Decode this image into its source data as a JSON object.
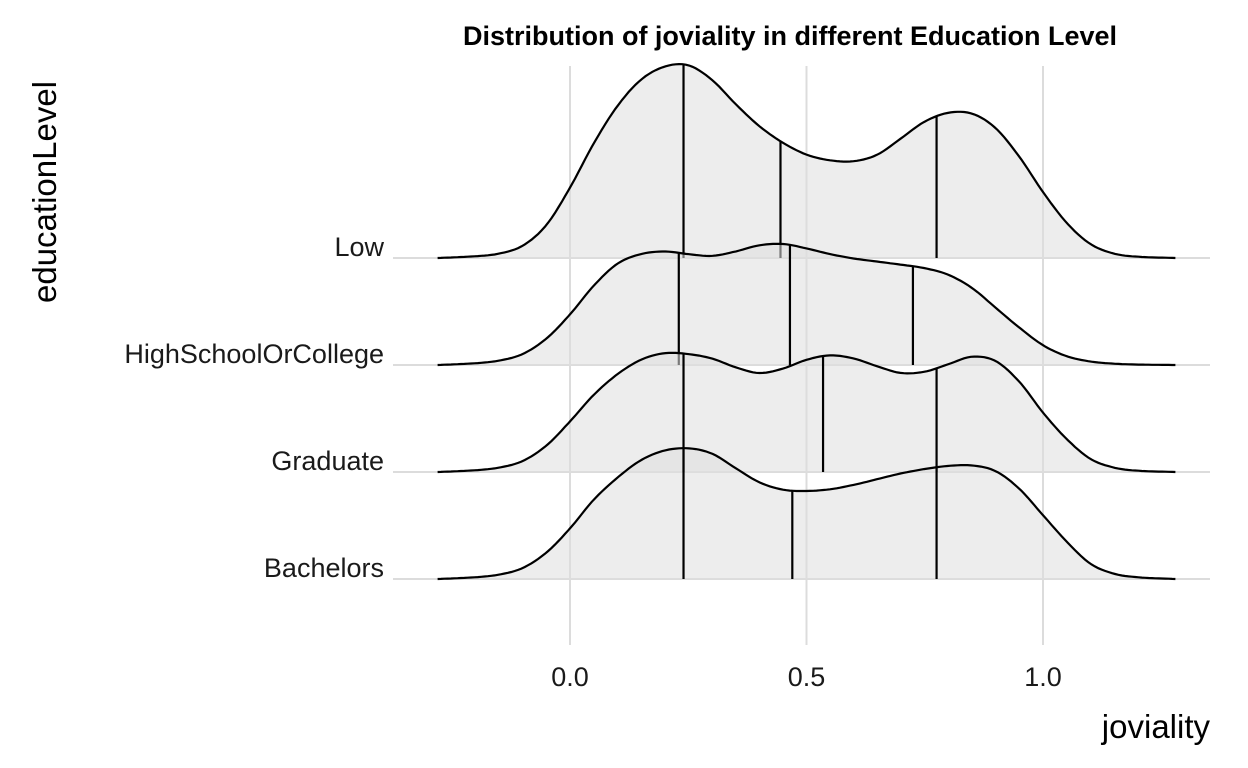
{
  "chart_data": {
    "type": "ridgeline",
    "title": "Distribution of joviality in different Education Level",
    "xlabel": "joviality",
    "ylabel": "educationLevel",
    "xlim": [
      -0.28,
      1.28
    ],
    "x_ticks": [
      0.0,
      0.5,
      1.0
    ],
    "x_tick_labels": [
      "0.0",
      "0.5",
      "1.0"
    ],
    "categories": [
      "Bachelors",
      "Graduate",
      "HighSchoolOrCollege",
      "Low"
    ],
    "grid": true,
    "legend": "none",
    "fill_color": "#dedede",
    "line_color": "#000000",
    "series": [
      {
        "name": "Bachelors",
        "x": [
          -0.28,
          -0.2,
          -0.15,
          -0.1,
          -0.05,
          0.0,
          0.05,
          0.1,
          0.15,
          0.2,
          0.25,
          0.3,
          0.35,
          0.4,
          0.45,
          0.5,
          0.55,
          0.6,
          0.65,
          0.7,
          0.75,
          0.8,
          0.85,
          0.9,
          0.95,
          1.0,
          1.05,
          1.1,
          1.15,
          1.2,
          1.28
        ],
        "density": [
          0.0,
          0.04,
          0.1,
          0.25,
          0.6,
          1.15,
          1.8,
          2.3,
          2.7,
          2.92,
          2.97,
          2.85,
          2.52,
          2.2,
          2.03,
          2.0,
          2.04,
          2.14,
          2.27,
          2.4,
          2.5,
          2.57,
          2.58,
          2.45,
          2.05,
          1.45,
          0.85,
          0.35,
          0.12,
          0.04,
          0.0
        ],
        "quantiles": [
          0.24,
          0.47,
          0.775
        ]
      },
      {
        "name": "Graduate",
        "x": [
          -0.28,
          -0.2,
          -0.15,
          -0.1,
          -0.05,
          0.0,
          0.05,
          0.1,
          0.15,
          0.2,
          0.25,
          0.3,
          0.35,
          0.4,
          0.45,
          0.5,
          0.55,
          0.6,
          0.65,
          0.7,
          0.75,
          0.8,
          0.85,
          0.9,
          0.95,
          1.0,
          1.05,
          1.1,
          1.15,
          1.2,
          1.28
        ],
        "density": [
          0.0,
          0.04,
          0.1,
          0.25,
          0.6,
          1.15,
          1.75,
          2.22,
          2.55,
          2.7,
          2.68,
          2.58,
          2.38,
          2.25,
          2.35,
          2.55,
          2.65,
          2.58,
          2.4,
          2.25,
          2.28,
          2.45,
          2.62,
          2.52,
          2.05,
          1.35,
          0.75,
          0.3,
          0.1,
          0.03,
          0.0
        ],
        "quantiles": [
          0.24,
          0.535,
          0.775
        ]
      },
      {
        "name": "HighSchoolOrCollege",
        "x": [
          -0.28,
          -0.2,
          -0.15,
          -0.1,
          -0.05,
          0.0,
          0.05,
          0.1,
          0.15,
          0.2,
          0.25,
          0.3,
          0.35,
          0.4,
          0.45,
          0.5,
          0.55,
          0.6,
          0.65,
          0.7,
          0.75,
          0.8,
          0.85,
          0.9,
          0.95,
          1.0,
          1.05,
          1.1,
          1.15,
          1.2,
          1.28
        ],
        "density": [
          0.0,
          0.04,
          0.1,
          0.25,
          0.6,
          1.15,
          1.8,
          2.3,
          2.52,
          2.58,
          2.52,
          2.48,
          2.58,
          2.72,
          2.75,
          2.65,
          2.52,
          2.42,
          2.35,
          2.28,
          2.2,
          2.05,
          1.75,
          1.3,
          0.85,
          0.45,
          0.2,
          0.08,
          0.03,
          0.01,
          0.0
        ],
        "quantiles": [
          0.23,
          0.465,
          0.725
        ]
      },
      {
        "name": "Low",
        "x": [
          -0.28,
          -0.2,
          -0.15,
          -0.1,
          -0.05,
          0.0,
          0.05,
          0.1,
          0.15,
          0.2,
          0.25,
          0.3,
          0.35,
          0.4,
          0.45,
          0.5,
          0.55,
          0.6,
          0.65,
          0.7,
          0.75,
          0.8,
          0.85,
          0.9,
          0.95,
          1.0,
          1.05,
          1.1,
          1.15,
          1.2,
          1.28
        ],
        "density": [
          0.0,
          0.04,
          0.1,
          0.28,
          0.75,
          1.6,
          2.6,
          3.45,
          4.05,
          4.35,
          4.38,
          4.05,
          3.5,
          3.0,
          2.62,
          2.35,
          2.22,
          2.2,
          2.35,
          2.72,
          3.1,
          3.3,
          3.28,
          2.95,
          2.3,
          1.5,
          0.8,
          0.32,
          0.1,
          0.03,
          0.0
        ],
        "quantiles": [
          0.24,
          0.445,
          0.775
        ]
      }
    ]
  }
}
